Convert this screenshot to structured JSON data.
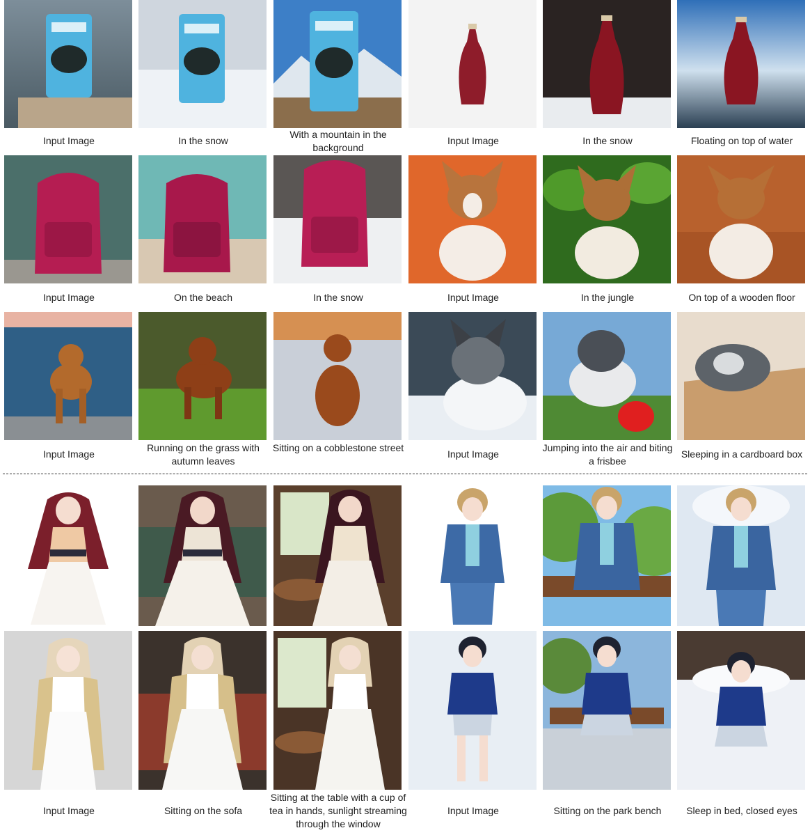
{
  "rows": [
    {
      "cells": [
        {
          "caption": "Input Image",
          "subject": "beer-can",
          "scene": "stone-pillar"
        },
        {
          "caption": "In the snow",
          "subject": "beer-can",
          "scene": "snow"
        },
        {
          "caption": "With a mountain in the background",
          "subject": "beer-can",
          "scene": "mountain"
        },
        {
          "caption": "Input Image",
          "subject": "red-vase",
          "scene": "white-studio"
        },
        {
          "caption": "In the snow",
          "subject": "red-vase",
          "scene": "snow-forest"
        },
        {
          "caption": "Floating on top of water",
          "subject": "red-vase",
          "scene": "water"
        }
      ]
    },
    {
      "cells": [
        {
          "caption": "Input Image",
          "subject": "backpack",
          "scene": "mountain-rock"
        },
        {
          "caption": "On the beach",
          "subject": "backpack",
          "scene": "beach"
        },
        {
          "caption": "In the snow",
          "subject": "backpack",
          "scene": "snow-forest"
        },
        {
          "caption": "Input Image",
          "subject": "corgi-puppy",
          "scene": "orange-studio"
        },
        {
          "caption": "In the jungle",
          "subject": "corgi-puppy",
          "scene": "jungle"
        },
        {
          "caption": "On top of a wooden floor",
          "subject": "corgi-puppy",
          "scene": "wood-floor"
        }
      ]
    },
    {
      "cells": [
        {
          "caption": "Input Image",
          "subject": "retriever",
          "scene": "sea"
        },
        {
          "caption": "Running on the grass with autumn leaves",
          "subject": "retriever",
          "scene": "grass"
        },
        {
          "caption": "Sitting on a cobblestone street",
          "subject": "retriever",
          "scene": "cobblestone"
        },
        {
          "caption": "Input Image",
          "subject": "border-collie",
          "scene": "white-blanket"
        },
        {
          "caption": "Jumping into the air and biting a frisbee",
          "subject": "border-collie",
          "scene": "frisbee-park"
        },
        {
          "caption": "Sleeping in a cardboard box",
          "subject": "border-collie",
          "scene": "cardboard-box"
        }
      ]
    },
    {
      "cells": [
        {
          "caption": "",
          "subject": "anime-girl-redhair",
          "scene": "white"
        },
        {
          "caption": "",
          "subject": "anime-girl-redhair",
          "scene": "sofa-room"
        },
        {
          "caption": "",
          "subject": "anime-girl-redhair",
          "scene": "cafe-window"
        },
        {
          "caption": "",
          "subject": "anime-boy-suit",
          "scene": "white"
        },
        {
          "caption": "",
          "subject": "anime-boy-suit",
          "scene": "park-bench"
        },
        {
          "caption": "",
          "subject": "anime-boy-suit",
          "scene": "bed"
        }
      ]
    },
    {
      "cells": [
        {
          "caption": "Input Image",
          "subject": "anime-girl-blonde",
          "scene": "grey"
        },
        {
          "caption": "Sitting on the sofa",
          "subject": "anime-girl-blonde",
          "scene": "sofa-room"
        },
        {
          "caption": "Sitting at the table with a cup of tea in hands, sunlight streaming through the window",
          "subject": "anime-girl-blonde",
          "scene": "cafe-window"
        },
        {
          "caption": "Input Image",
          "subject": "anime-boy-tshirt",
          "scene": "pale-blue"
        },
        {
          "caption": "Sitting on the park bench",
          "subject": "anime-boy-tshirt",
          "scene": "park-bench"
        },
        {
          "caption": "Sleep in bed, closed eyes",
          "subject": "anime-boy-tshirt",
          "scene": "bed"
        }
      ]
    }
  ],
  "colors": {
    "separator": "#333333",
    "caption_text": "#222222"
  }
}
